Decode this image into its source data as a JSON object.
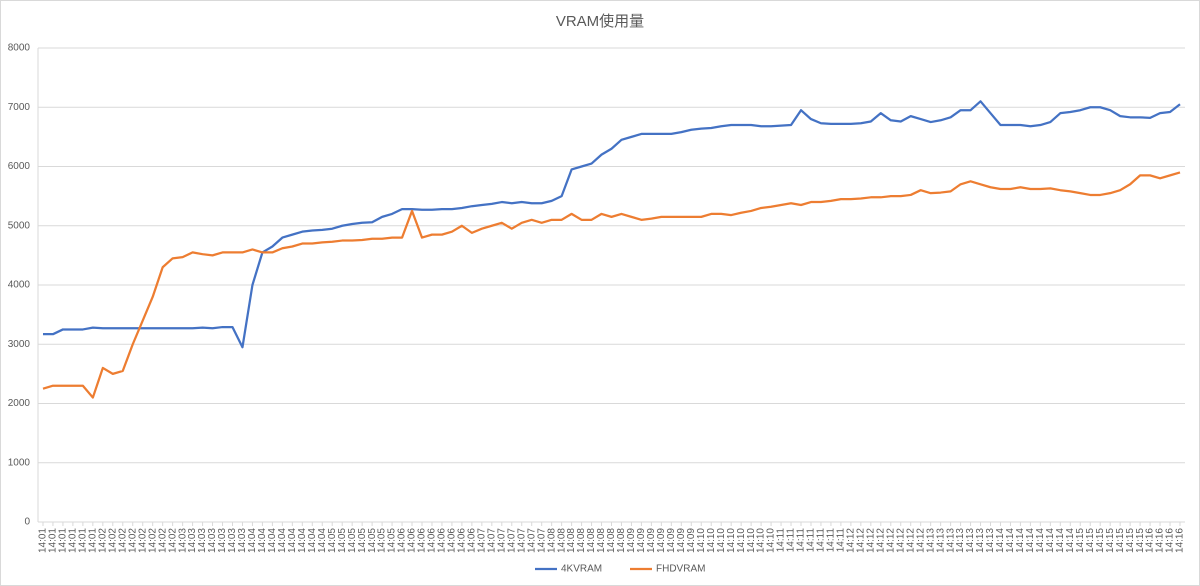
{
  "chart_data": {
    "type": "line",
    "title": "VRAM使用量",
    "categories": [
      "14:01",
      "14:01",
      "14:01",
      "14:01",
      "14:01",
      "14:01",
      "14:02",
      "14:02",
      "14:02",
      "14:02",
      "14:02",
      "14:02",
      "14:02",
      "14:02",
      "14:03",
      "14:03",
      "14:03",
      "14:03",
      "14:03",
      "14:03",
      "14:03",
      "14:04",
      "14:04",
      "14:04",
      "14:04",
      "14:04",
      "14:04",
      "14:04",
      "14:04",
      "14:05",
      "14:05",
      "14:05",
      "14:05",
      "14:05",
      "14:05",
      "14:05",
      "14:06",
      "14:06",
      "14:06",
      "14:06",
      "14:06",
      "14:06",
      "14:06",
      "14:06",
      "14:07",
      "14:07",
      "14:07",
      "14:07",
      "14:07",
      "14:07",
      "14:07",
      "14:08",
      "14:08",
      "14:08",
      "14:08",
      "14:08",
      "14:08",
      "14:08",
      "14:08",
      "14:09",
      "14:09",
      "14:09",
      "14:09",
      "14:09",
      "14:09",
      "14:09",
      "14:10",
      "14:10",
      "14:10",
      "14:10",
      "14:10",
      "14:10",
      "14:10",
      "14:10",
      "14:11",
      "14:11",
      "14:11",
      "14:11",
      "14:11",
      "14:11",
      "14:11",
      "14:12",
      "14:12",
      "14:12",
      "14:12",
      "14:12",
      "14:12",
      "14:12",
      "14:12",
      "14:13",
      "14:13",
      "14:13",
      "14:13",
      "14:13",
      "14:13",
      "14:13",
      "14:14",
      "14:14",
      "14:14",
      "14:14",
      "14:14",
      "14:14",
      "14:14",
      "14:14",
      "14:15",
      "14:15",
      "14:15",
      "14:15",
      "14:15",
      "14:15",
      "14:15",
      "14:16",
      "14:16",
      "14:16",
      "14:16"
    ],
    "series": [
      {
        "name": "4KVRAM",
        "color": "#4472c4",
        "values": [
          3170,
          3170,
          3250,
          3250,
          3250,
          3280,
          3270,
          3270,
          3270,
          3270,
          3270,
          3270,
          3270,
          3270,
          3270,
          3270,
          3280,
          3270,
          3290,
          3290,
          2950,
          4000,
          4550,
          4650,
          4800,
          4850,
          4900,
          4920,
          4930,
          4950,
          5000,
          5030,
          5050,
          5060,
          5150,
          5200,
          5280,
          5280,
          5270,
          5270,
          5280,
          5280,
          5300,
          5330,
          5350,
          5370,
          5400,
          5380,
          5400,
          5380,
          5380,
          5420,
          5500,
          5950,
          6000,
          6050,
          6200,
          6300,
          6450,
          6500,
          6550,
          6550,
          6550,
          6550,
          6580,
          6620,
          6640,
          6650,
          6680,
          6700,
          6700,
          6700,
          6680,
          6680,
          6690,
          6700,
          6950,
          6800,
          6730,
          6720,
          6720,
          6720,
          6730,
          6760,
          6900,
          6780,
          6760,
          6850,
          6800,
          6750,
          6780,
          6830,
          6950,
          6950,
          7100,
          6900,
          6700,
          6700,
          6700,
          6680,
          6700,
          6750,
          6900,
          6920,
          6950,
          7000,
          7000,
          6950,
          6850,
          6830,
          6830,
          6820,
          6900,
          6920,
          7050
        ]
      },
      {
        "name": "FHDVRAM",
        "color": "#ed7d31",
        "values": [
          2250,
          2300,
          2300,
          2300,
          2300,
          2100,
          2600,
          2500,
          2550,
          3000,
          3400,
          3800,
          4300,
          4450,
          4470,
          4550,
          4520,
          4500,
          4550,
          4550,
          4550,
          4600,
          4550,
          4550,
          4620,
          4650,
          4700,
          4700,
          4720,
          4730,
          4750,
          4750,
          4760,
          4780,
          4780,
          4800,
          4800,
          5250,
          4800,
          4850,
          4850,
          4900,
          5000,
          4880,
          4950,
          5000,
          5050,
          4950,
          5050,
          5100,
          5050,
          5100,
          5100,
          5200,
          5100,
          5100,
          5200,
          5150,
          5200,
          5150,
          5100,
          5120,
          5150,
          5150,
          5150,
          5150,
          5150,
          5200,
          5200,
          5180,
          5220,
          5250,
          5300,
          5320,
          5350,
          5380,
          5350,
          5400,
          5400,
          5420,
          5450,
          5450,
          5460,
          5480,
          5480,
          5500,
          5500,
          5520,
          5600,
          5550,
          5560,
          5580,
          5700,
          5750,
          5700,
          5650,
          5620,
          5620,
          5650,
          5620,
          5620,
          5630,
          5600,
          5580,
          5550,
          5520,
          5520,
          5550,
          5600,
          5700,
          5850,
          5850,
          5800,
          5850,
          5900
        ]
      }
    ],
    "ylim": [
      0,
      8000
    ],
    "yticks": [
      0,
      1000,
      2000,
      3000,
      4000,
      5000,
      6000,
      7000,
      8000
    ],
    "grid": true
  }
}
